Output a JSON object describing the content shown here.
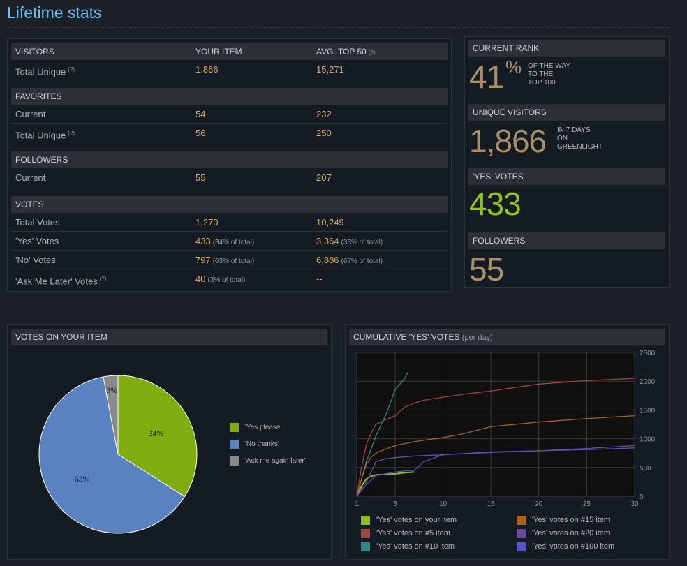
{
  "page": {
    "title": "Lifetime stats"
  },
  "stats": {
    "sections": [
      {
        "headers": [
          "VISITORS",
          "YOUR ITEM",
          "AVG. TOP 50"
        ],
        "header_help": "(?)",
        "rows": [
          {
            "label": "Total Unique",
            "help": "(?)",
            "your": "1,866",
            "avg": "15,271"
          }
        ]
      },
      {
        "headers": [
          "FAVORITES",
          "",
          ""
        ],
        "rows": [
          {
            "label": "Current",
            "your": "54",
            "avg": "232"
          },
          {
            "label": "Total Unique",
            "help": "(?)",
            "your": "56",
            "avg": "250"
          }
        ]
      },
      {
        "headers": [
          "FOLLOWERS",
          "",
          ""
        ],
        "rows": [
          {
            "label": "Current",
            "your": "55",
            "avg": "207"
          }
        ]
      },
      {
        "headers": [
          "VOTES",
          "",
          ""
        ],
        "rows": [
          {
            "label": "Total Votes",
            "your": "1,270",
            "avg": "10,249"
          },
          {
            "label": "'Yes' Votes",
            "your": "433",
            "your_pct": "(34% of total)",
            "avg": "3,364",
            "avg_pct": "(33% of total)"
          },
          {
            "label": "'No' Votes",
            "your": "797",
            "your_pct": "(63% of total)",
            "avg": "6,886",
            "avg_pct": "(67% of total)"
          },
          {
            "label": "'Ask Me Later' Votes",
            "help": "(?)",
            "your": "40",
            "your_pct": "(3% of total)",
            "avg": "--"
          }
        ]
      }
    ]
  },
  "rank": {
    "current_rank": {
      "label": "CURRENT RANK",
      "value": "41",
      "unit": "%",
      "note": [
        "OF THE WAY",
        "TO THE",
        "TOP 100"
      ]
    },
    "unique_visitors": {
      "label": "UNIQUE VISITORS",
      "value": "1,866",
      "note": [
        "IN 7 DAYS",
        "ON",
        "GREENLIGHT"
      ]
    },
    "yes_votes": {
      "label": "'YES' VOTES",
      "value": "433"
    },
    "followers": {
      "label": "FOLLOWERS",
      "value": "55"
    }
  },
  "votes_panel": {
    "title": "VOTES ON YOUR ITEM"
  },
  "cumulative_panel": {
    "title": "CUMULATIVE 'YES' VOTES",
    "subtitle": "(per day)"
  },
  "colors": {
    "yes": "#7fad10",
    "no": "#5b82c0",
    "later": "#8a8a8a",
    "your_item": "#8bbf1b",
    "top5": "#a14545",
    "top10": "#2e8a8a",
    "top15": "#a8621a",
    "top20": "#6a4a9e",
    "top100": "#5a50c8"
  },
  "chart_data": [
    {
      "type": "pie",
      "title": "",
      "slices": [
        {
          "name": "'Yes please'",
          "value": 34,
          "label": "34%",
          "color": "#7fad10"
        },
        {
          "name": "'No thanks'",
          "value": 63,
          "label": "63%",
          "color": "#5b82c0"
        },
        {
          "name": "'Ask me again later'",
          "value": 3,
          "label": "3%",
          "color": "#8a8a8a"
        }
      ],
      "legend": "right"
    },
    {
      "type": "line",
      "title": "",
      "xlabel": "",
      "ylabel": "",
      "xlim": [
        1,
        30
      ],
      "ylim": [
        0,
        2500
      ],
      "xticks": [
        1,
        5,
        10,
        15,
        20,
        25,
        30
      ],
      "yticks": [
        0,
        500,
        1000,
        1500,
        2000,
        2500
      ],
      "grid": true,
      "legend": "bottom",
      "series": [
        {
          "name": "'Yes' votes on your item",
          "color": "#8bbf1b",
          "x": [
            1,
            1.5,
            2,
            2.5,
            3,
            4,
            5,
            6,
            7
          ],
          "y": [
            0,
            180,
            300,
            350,
            370,
            380,
            390,
            410,
            420
          ]
        },
        {
          "name": "'Yes' votes on #5 item",
          "color": "#a14545",
          "x": [
            1,
            1.5,
            2,
            2.5,
            3,
            4,
            5,
            6,
            7,
            8,
            10,
            12,
            15,
            20,
            25,
            30
          ],
          "y": [
            0,
            500,
            900,
            1100,
            1250,
            1330,
            1400,
            1550,
            1620,
            1670,
            1720,
            1770,
            1830,
            1950,
            2010,
            2050
          ]
        },
        {
          "name": "'Yes' votes on #10 item",
          "color": "#2e8a8a",
          "x": [
            1,
            2,
            3,
            4,
            5,
            6,
            6.3
          ],
          "y": [
            0,
            600,
            1050,
            1400,
            1850,
            2050,
            2150
          ]
        },
        {
          "name": "'Yes' votes on #15 item",
          "color": "#a8621a",
          "x": [
            1,
            1.5,
            2,
            2.5,
            3,
            4,
            5,
            7,
            10,
            12,
            15,
            20,
            25,
            30
          ],
          "y": [
            0,
            300,
            550,
            680,
            750,
            820,
            880,
            950,
            1020,
            1080,
            1210,
            1290,
            1350,
            1400
          ]
        },
        {
          "name": "'Yes' votes on #20 item",
          "color": "#6a4a9e",
          "x": [
            1,
            2,
            3,
            4,
            5,
            7,
            10,
            15,
            20,
            25,
            30
          ],
          "y": [
            0,
            250,
            600,
            650,
            670,
            700,
            720,
            760,
            790,
            830,
            880
          ]
        },
        {
          "name": "'Yes' votes on #100 item",
          "color": "#5a50c8",
          "x": [
            1,
            2,
            3,
            4,
            5,
            6,
            7,
            8,
            10,
            15,
            20,
            25,
            30
          ],
          "y": [
            0,
            200,
            360,
            390,
            420,
            440,
            450,
            600,
            720,
            770,
            790,
            810,
            840
          ]
        }
      ]
    }
  ]
}
